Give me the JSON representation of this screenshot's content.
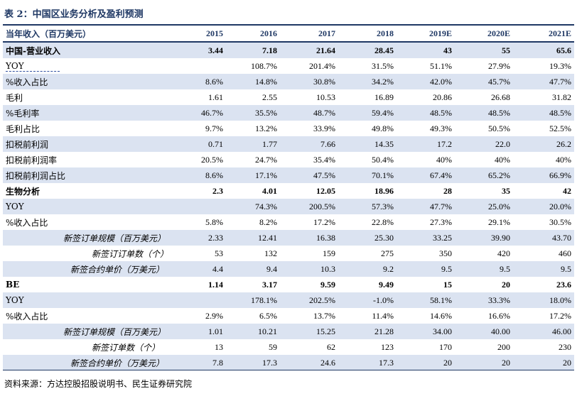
{
  "title": "表 2：中国区业务分析及盈利预测",
  "header": {
    "label": "当年收入（百万美元）",
    "years": [
      "2015",
      "2016",
      "2017",
      "2018",
      "2019E",
      "2020E",
      "2021E"
    ]
  },
  "rows": [
    {
      "label": "中国-营业收入",
      "values": [
        "3.44",
        "7.18",
        "21.64",
        "28.45",
        "43",
        "55",
        "65.6"
      ],
      "style": "bold",
      "indent": 0,
      "shade": true
    },
    {
      "label": "YOY",
      "values": [
        "",
        "108.7%",
        "201.4%",
        "31.5%",
        "51.1%",
        "27.9%",
        "19.3%"
      ],
      "style": "",
      "indent": 0,
      "shade": false
    },
    {
      "label": "%收入占比",
      "values": [
        "8.6%",
        "14.8%",
        "30.8%",
        "34.2%",
        "42.0%",
        "45.7%",
        "47.7%"
      ],
      "style": "",
      "indent": 0,
      "shade": true
    },
    {
      "label": "毛利",
      "values": [
        "1.61",
        "2.55",
        "10.53",
        "16.89",
        "20.86",
        "26.68",
        "31.82"
      ],
      "style": "",
      "indent": 0,
      "shade": false
    },
    {
      "label": "%毛利率",
      "values": [
        "46.7%",
        "35.5%",
        "48.7%",
        "59.4%",
        "48.5%",
        "48.5%",
        "48.5%"
      ],
      "style": "",
      "indent": 0,
      "shade": true
    },
    {
      "label": "毛利占比",
      "values": [
        "9.7%",
        "13.2%",
        "33.9%",
        "49.8%",
        "49.3%",
        "50.5%",
        "52.5%"
      ],
      "style": "",
      "indent": 0,
      "shade": false
    },
    {
      "label": "扣税前利润",
      "values": [
        "0.71",
        "1.77",
        "7.66",
        "14.35",
        "17.2",
        "22.0",
        "26.2"
      ],
      "style": "",
      "indent": 0,
      "shade": true
    },
    {
      "label": "扣税前利润率",
      "values": [
        "20.5%",
        "24.7%",
        "35.4%",
        "50.4%",
        "40%",
        "40%",
        "40%"
      ],
      "style": "",
      "indent": 0,
      "shade": false
    },
    {
      "label": "扣税前利润占比",
      "values": [
        "8.6%",
        "17.1%",
        "47.5%",
        "70.1%",
        "67.4%",
        "65.2%",
        "66.9%"
      ],
      "style": "",
      "indent": 0,
      "shade": true
    },
    {
      "label": "生物分析",
      "values": [
        "2.3",
        "4.01",
        "12.05",
        "18.96",
        "28",
        "35",
        "42"
      ],
      "style": "bold",
      "indent": 0,
      "shade": false
    },
    {
      "label": "YOY",
      "values": [
        "",
        "74.3%",
        "200.5%",
        "57.3%",
        "47.7%",
        "25.0%",
        "20.0%"
      ],
      "style": "",
      "indent": 0,
      "shade": true
    },
    {
      "label": "%收入占比",
      "values": [
        "5.8%",
        "8.2%",
        "17.2%",
        "22.8%",
        "27.3%",
        "29.1%",
        "30.5%"
      ],
      "style": "",
      "indent": 0,
      "shade": false
    },
    {
      "label": "新签订单规模（百万美元）",
      "values": [
        "2.33",
        "12.41",
        "16.38",
        "25.30",
        "33.25",
        "39.90",
        "43.70"
      ],
      "style": "italic",
      "indent": 2,
      "shade": true
    },
    {
      "label": "新签订订单数（个）",
      "values": [
        "53",
        "132",
        "159",
        "275",
        "350",
        "420",
        "460"
      ],
      "style": "italic",
      "indent": 3,
      "shade": false
    },
    {
      "label": "新签合约单价（万美元）",
      "values": [
        "4.4",
        "9.4",
        "10.3",
        "9.2",
        "9.5",
        "9.5",
        "9.5"
      ],
      "style": "italic",
      "indent": 1,
      "shade": true
    },
    {
      "label": "BE",
      "values": [
        "1.14",
        "3.17",
        "9.59",
        "9.49",
        "15",
        "20",
        "23.6"
      ],
      "style": "bold",
      "indent": 0,
      "shade": false
    },
    {
      "label": "YOY",
      "values": [
        "",
        "178.1%",
        "202.5%",
        "-1.0%",
        "58.1%",
        "33.3%",
        "18.0%"
      ],
      "style": "",
      "indent": 0,
      "shade": true
    },
    {
      "label": "%收入占比",
      "values": [
        "2.9%",
        "6.5%",
        "13.7%",
        "11.4%",
        "14.6%",
        "16.6%",
        "17.2%"
      ],
      "style": "",
      "indent": 0,
      "shade": false
    },
    {
      "label": "新签订单规模（百万美元）",
      "values": [
        "1.01",
        "10.21",
        "15.25",
        "21.28",
        "34.00",
        "40.00",
        "46.00"
      ],
      "style": "italic",
      "indent": 2,
      "shade": true
    },
    {
      "label": "新签订单数（个）",
      "values": [
        "13",
        "59",
        "62",
        "123",
        "170",
        "200",
        "230"
      ],
      "style": "italic",
      "indent": 3,
      "shade": false
    },
    {
      "label": "新签合约单价（万美元）",
      "values": [
        "7.8",
        "17.3",
        "24.6",
        "17.3",
        "20",
        "20",
        "20"
      ],
      "style": "italic",
      "indent": 1,
      "shade": true
    }
  ],
  "source": "资料来源：方达控股招股说明书、民生证券研究院",
  "colors": {
    "accent": "#1f3864",
    "shade": "#dbe3f1"
  }
}
